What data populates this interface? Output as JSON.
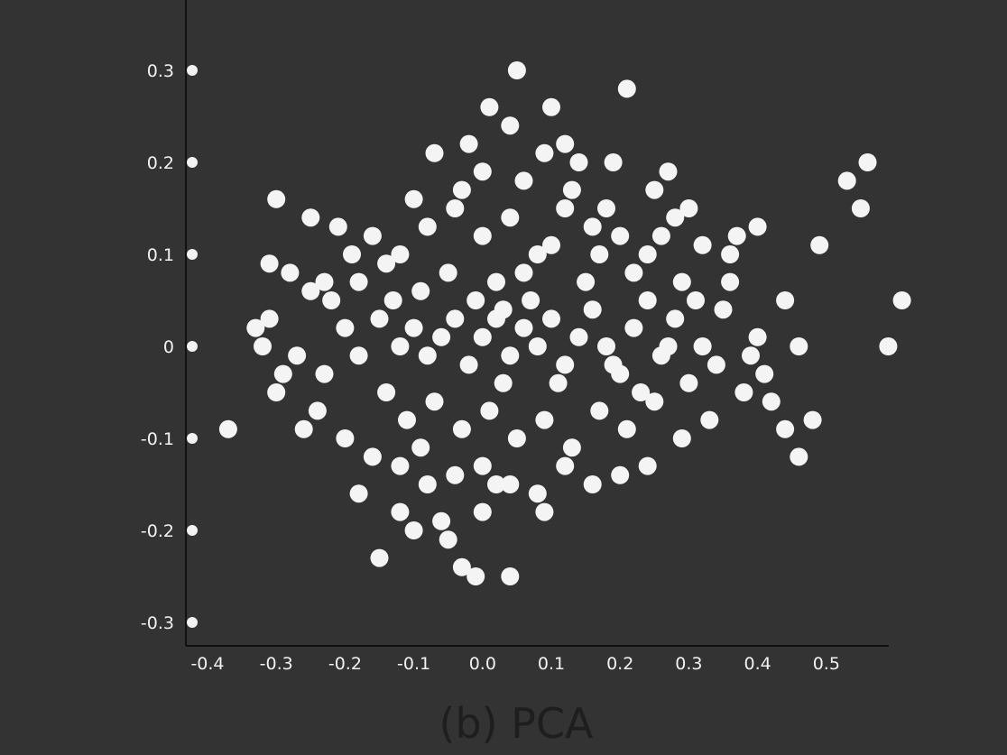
{
  "chart_data": {
    "type": "scatter",
    "title": "(b) PCA",
    "xlabel": "",
    "ylabel": "",
    "xlim": [
      -0.4,
      0.6
    ],
    "ylim": [
      -0.3,
      0.3
    ],
    "x_ticks": [
      "-0.4",
      "-0.3",
      "-0.2",
      "-0.1",
      "0.0",
      "0.1",
      "0.2",
      "0.3",
      "0.4",
      "0.5"
    ],
    "y_ticks": [
      "0.3",
      "0.2",
      "0.1",
      "0",
      "-0.1",
      "-0.2",
      "-0.3"
    ],
    "grid": false,
    "legend": "none",
    "colors": {
      "background": "#333333",
      "points": "#f4f4f4",
      "axis": "#111111",
      "ticks": "#f2f2f2",
      "caption": "#1e1e1e"
    },
    "series": [
      {
        "values": [
          [
            -0.15,
            -0.23
          ],
          [
            -0.12,
            -0.18
          ],
          [
            -0.1,
            -0.2
          ],
          [
            -0.05,
            -0.21
          ],
          [
            -0.03,
            -0.24
          ],
          [
            0.0,
            -0.18
          ],
          [
            -0.01,
            -0.25
          ],
          [
            0.04,
            -0.25
          ],
          [
            -0.18,
            -0.16
          ],
          [
            0.02,
            -0.15
          ],
          [
            -0.26,
            -0.09
          ],
          [
            -0.3,
            -0.05
          ],
          [
            -0.32,
            0.0
          ],
          [
            -0.31,
            0.03
          ],
          [
            -0.29,
            -0.03
          ],
          [
            -0.28,
            0.08
          ],
          [
            -0.25,
            0.06
          ],
          [
            -0.23,
            0.07
          ],
          [
            -0.22,
            0.05
          ],
          [
            -0.2,
            0.02
          ],
          [
            -0.18,
            -0.01
          ],
          [
            -0.15,
            0.03
          ],
          [
            -0.12,
            0.0
          ],
          [
            -0.1,
            0.02
          ],
          [
            -0.08,
            -0.01
          ],
          [
            -0.06,
            0.01
          ],
          [
            -0.04,
            0.03
          ],
          [
            -0.02,
            -0.02
          ],
          [
            0.0,
            0.01
          ],
          [
            0.02,
            0.03
          ],
          [
            0.04,
            -0.01
          ],
          [
            0.06,
            0.02
          ],
          [
            0.08,
            0.0
          ],
          [
            0.1,
            0.03
          ],
          [
            0.12,
            -0.02
          ],
          [
            0.14,
            0.01
          ],
          [
            0.16,
            0.04
          ],
          [
            0.18,
            0.0
          ],
          [
            0.2,
            -0.03
          ],
          [
            0.22,
            0.02
          ],
          [
            0.24,
            0.05
          ],
          [
            0.26,
            -0.01
          ],
          [
            0.28,
            0.03
          ],
          [
            0.3,
            -0.04
          ],
          [
            0.32,
            0.0
          ],
          [
            0.34,
            -0.02
          ],
          [
            0.36,
            0.07
          ],
          [
            0.38,
            -0.05
          ],
          [
            0.4,
            0.01
          ],
          [
            0.42,
            -0.06
          ],
          [
            0.44,
            -0.09
          ],
          [
            0.46,
            -0.12
          ],
          [
            0.48,
            -0.08
          ],
          [
            0.46,
            0.0
          ],
          [
            0.44,
            0.05
          ],
          [
            0.49,
            0.11
          ],
          [
            0.53,
            0.18
          ],
          [
            0.56,
            0.2
          ],
          [
            0.55,
            0.15
          ],
          [
            0.59,
            0.0
          ],
          [
            0.61,
            0.05
          ],
          [
            -0.25,
            0.14
          ],
          [
            -0.21,
            0.13
          ],
          [
            -0.16,
            0.12
          ],
          [
            -0.12,
            0.1
          ],
          [
            -0.08,
            0.13
          ],
          [
            -0.04,
            0.15
          ],
          [
            0.0,
            0.12
          ],
          [
            0.04,
            0.14
          ],
          [
            0.08,
            0.1
          ],
          [
            0.12,
            0.15
          ],
          [
            0.16,
            0.13
          ],
          [
            0.2,
            0.12
          ],
          [
            0.24,
            0.1
          ],
          [
            0.28,
            0.14
          ],
          [
            0.32,
            0.11
          ],
          [
            0.36,
            0.1
          ],
          [
            0.4,
            0.13
          ],
          [
            0.04,
            0.24
          ],
          [
            0.05,
            0.3
          ],
          [
            0.09,
            0.21
          ],
          [
            0.12,
            0.22
          ],
          [
            0.21,
            0.28
          ],
          [
            0.19,
            0.2
          ],
          [
            0.27,
            0.19
          ],
          [
            -0.03,
            0.17
          ],
          [
            0.0,
            0.19
          ],
          [
            0.06,
            0.18
          ],
          [
            0.13,
            0.17
          ],
          [
            0.18,
            0.15
          ],
          [
            0.25,
            0.17
          ],
          [
            0.3,
            0.15
          ],
          [
            -0.1,
            0.16
          ],
          [
            -0.05,
            0.08
          ],
          [
            0.02,
            0.07
          ],
          [
            0.07,
            0.05
          ],
          [
            0.15,
            0.07
          ],
          [
            0.22,
            0.08
          ],
          [
            0.29,
            0.07
          ],
          [
            -0.18,
            0.07
          ],
          [
            -0.14,
            -0.05
          ],
          [
            -0.11,
            -0.08
          ],
          [
            -0.07,
            -0.06
          ],
          [
            -0.03,
            -0.09
          ],
          [
            0.01,
            -0.07
          ],
          [
            0.05,
            -0.1
          ],
          [
            0.09,
            -0.08
          ],
          [
            0.13,
            -0.11
          ],
          [
            0.17,
            -0.07
          ],
          [
            0.21,
            -0.09
          ],
          [
            0.25,
            -0.06
          ],
          [
            0.29,
            -0.1
          ],
          [
            0.33,
            -0.08
          ],
          [
            -0.24,
            -0.07
          ],
          [
            -0.2,
            -0.1
          ],
          [
            -0.16,
            -0.12
          ],
          [
            -0.12,
            -0.13
          ],
          [
            -0.08,
            -0.15
          ],
          [
            -0.04,
            -0.14
          ],
          [
            0.0,
            -0.13
          ],
          [
            0.04,
            -0.15
          ],
          [
            0.08,
            -0.16
          ],
          [
            0.12,
            -0.13
          ],
          [
            0.16,
            -0.15
          ],
          [
            0.2,
            -0.14
          ],
          [
            0.24,
            -0.13
          ],
          [
            -0.06,
            -0.19
          ],
          [
            0.09,
            -0.18
          ],
          [
            -0.37,
            -0.09
          ],
          [
            -0.33,
            0.02
          ],
          [
            -0.31,
            0.09
          ],
          [
            -0.3,
            0.16
          ],
          [
            0.01,
            0.26
          ],
          [
            0.14,
            0.2
          ],
          [
            0.1,
            0.26
          ],
          [
            -0.02,
            0.22
          ],
          [
            -0.07,
            0.21
          ],
          [
            0.03,
            0.04
          ],
          [
            0.11,
            -0.04
          ],
          [
            0.19,
            -0.02
          ],
          [
            0.27,
            0.0
          ],
          [
            0.35,
            0.04
          ],
          [
            0.41,
            -0.03
          ],
          [
            -0.27,
            -0.01
          ],
          [
            -0.23,
            -0.03
          ],
          [
            -0.19,
            0.1
          ],
          [
            -0.14,
            0.09
          ],
          [
            -0.09,
            0.06
          ],
          [
            -0.01,
            0.05
          ],
          [
            0.06,
            0.08
          ],
          [
            0.17,
            0.1
          ],
          [
            0.23,
            -0.05
          ],
          [
            0.31,
            0.05
          ],
          [
            0.37,
            0.12
          ],
          [
            -0.09,
            -0.11
          ],
          [
            -0.13,
            0.05
          ],
          [
            0.03,
            -0.04
          ],
          [
            0.1,
            0.11
          ],
          [
            0.26,
            0.12
          ],
          [
            0.39,
            -0.01
          ]
        ]
      }
    ]
  }
}
